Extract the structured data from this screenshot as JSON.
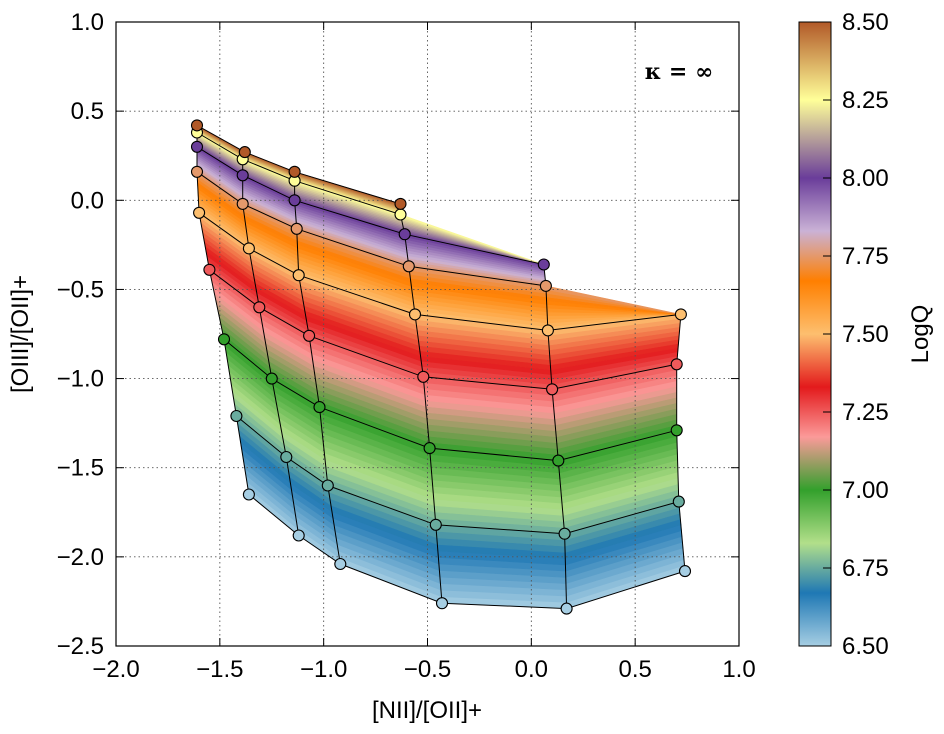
{
  "chart_data": {
    "type": "scatter",
    "xlabel": "[NII]/[OII]+",
    "ylabel": "[OIII]/[OII]+",
    "xlim": [
      -2.0,
      1.0
    ],
    "ylim": [
      -2.5,
      1.0
    ],
    "xticks": [
      "−2.0",
      "−1.5",
      "−1.0",
      "−0.5",
      "0.0",
      "0.5",
      "1.0"
    ],
    "yticks": [
      "1.0",
      "0.5",
      "0.0",
      "−0.5",
      "−1.0",
      "−1.5",
      "−2.0",
      "−2.5"
    ],
    "grid": true,
    "annotation": "κ = ∞",
    "colorbar": {
      "label": "LogQ",
      "min": 6.5,
      "max": 8.5,
      "ticks": [
        "8.50",
        "8.25",
        "8.00",
        "7.75",
        "7.50",
        "7.25",
        "7.00",
        "6.75",
        "6.50"
      ],
      "stops": [
        {
          "v": 6.5,
          "color": "#a6cee3"
        },
        {
          "v": 6.67,
          "color": "#1f78b4"
        },
        {
          "v": 6.83,
          "color": "#b2df8a"
        },
        {
          "v": 7.0,
          "color": "#33a02c"
        },
        {
          "v": 7.17,
          "color": "#fb9a99"
        },
        {
          "v": 7.33,
          "color": "#e31a1c"
        },
        {
          "v": 7.5,
          "color": "#fdbf6f"
        },
        {
          "v": 7.67,
          "color": "#ff7f00"
        },
        {
          "v": 7.83,
          "color": "#cab2d6"
        },
        {
          "v": 8.0,
          "color": "#6a3d9a"
        },
        {
          "v": 8.25,
          "color": "#ffff99"
        },
        {
          "v": 8.5,
          "color": "#b15928"
        }
      ]
    },
    "logQ_levels": [
      6.5,
      6.75,
      7.0,
      7.25,
      7.5,
      7.75,
      8.0,
      8.25,
      8.5
    ],
    "grid_columns": [
      {
        "points": [
          [
            -1.36,
            -1.65
          ],
          [
            -1.42,
            -1.21
          ],
          [
            -1.48,
            -0.78
          ],
          [
            -1.55,
            -0.39
          ],
          [
            -1.6,
            -0.07
          ],
          [
            -1.61,
            0.16
          ],
          [
            -1.61,
            0.3
          ],
          [
            -1.61,
            0.38
          ],
          [
            -1.61,
            0.42
          ]
        ]
      },
      {
        "points": [
          [
            -1.12,
            -1.88
          ],
          [
            -1.18,
            -1.44
          ],
          [
            -1.25,
            -1.0
          ],
          [
            -1.31,
            -0.6
          ],
          [
            -1.36,
            -0.27
          ],
          [
            -1.39,
            -0.02
          ],
          [
            -1.39,
            0.14
          ],
          [
            -1.39,
            0.23
          ],
          [
            -1.38,
            0.27
          ]
        ]
      },
      {
        "points": [
          [
            -0.92,
            -2.04
          ],
          [
            -0.98,
            -1.6
          ],
          [
            -1.02,
            -1.16
          ],
          [
            -1.07,
            -0.76
          ],
          [
            -1.12,
            -0.42
          ],
          [
            -1.13,
            -0.16
          ],
          [
            -1.14,
            0.0
          ],
          [
            -1.14,
            0.11
          ],
          [
            -1.14,
            0.16
          ]
        ]
      },
      {
        "points": [
          [
            -0.43,
            -2.26
          ],
          [
            -0.46,
            -1.82
          ],
          [
            -0.49,
            -1.39
          ],
          [
            -0.52,
            -0.99
          ],
          [
            -0.56,
            -0.64
          ],
          [
            -0.59,
            -0.37
          ],
          [
            -0.61,
            -0.19
          ],
          [
            -0.63,
            -0.08
          ],
          [
            -0.63,
            -0.02
          ]
        ]
      },
      {
        "points": [
          [
            0.17,
            -2.29
          ],
          [
            0.16,
            -1.87
          ],
          [
            0.13,
            -1.46
          ],
          [
            0.1,
            -1.06
          ],
          [
            0.08,
            -0.73
          ],
          [
            0.07,
            -0.48
          ],
          [
            0.06,
            -0.36
          ],
          null,
          null
        ]
      },
      {
        "points": [
          [
            0.74,
            -2.08
          ],
          [
            0.71,
            -1.69
          ],
          [
            0.7,
            -1.29
          ],
          [
            0.7,
            -0.92
          ],
          [
            0.72,
            -0.64
          ],
          null,
          null,
          null,
          null
        ]
      }
    ]
  }
}
